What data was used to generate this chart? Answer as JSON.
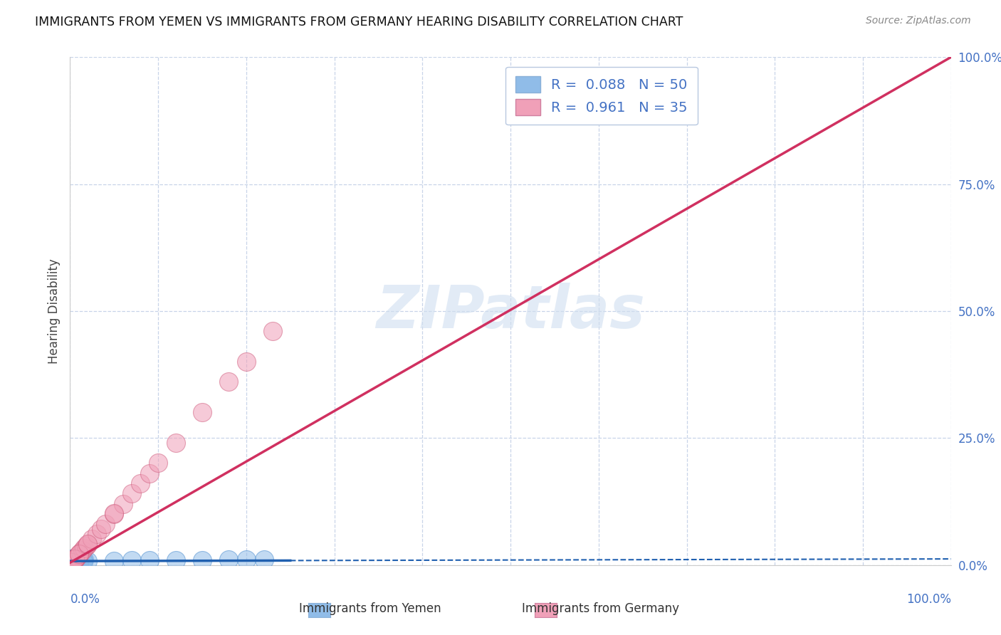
{
  "title": "IMMIGRANTS FROM YEMEN VS IMMIGRANTS FROM GERMANY HEARING DISABILITY CORRELATION CHART",
  "source": "Source: ZipAtlas.com",
  "ylabel": "Hearing Disability",
  "watermark": "ZIPatlas",
  "background_color": "#ffffff",
  "plot_bg_color": "#ffffff",
  "grid_color": "#c8d4e8",
  "yemen_color": "#90bce8",
  "yemen_edge_color": "#5090d0",
  "germany_color": "#f0a0b8",
  "germany_edge_color": "#d06080",
  "yemen_line_color": "#2060b0",
  "germany_line_color": "#d03060",
  "xlim": [
    0,
    1
  ],
  "ylim": [
    0,
    1
  ],
  "yemen_x": [
    0.0002,
    0.0005,
    0.001,
    0.0015,
    0.002,
    0.0025,
    0.003,
    0.004,
    0.005,
    0.006,
    0.007,
    0.008,
    0.009,
    0.01,
    0.011,
    0.012,
    0.013,
    0.014,
    0.015,
    0.016,
    0.0005,
    0.001,
    0.002,
    0.003,
    0.004,
    0.005,
    0.006,
    0.007,
    0.008,
    0.009,
    0.001,
    0.002,
    0.003,
    0.004,
    0.05,
    0.07,
    0.09,
    0.12,
    0.15,
    0.18,
    0.2,
    0.22,
    0.001,
    0.002,
    0.003,
    0.004,
    0.005,
    0.01,
    0.015,
    0.02
  ],
  "yemen_y": [
    0.005,
    0.005,
    0.006,
    0.006,
    0.007,
    0.007,
    0.007,
    0.008,
    0.008,
    0.008,
    0.009,
    0.009,
    0.009,
    0.01,
    0.01,
    0.01,
    0.01,
    0.011,
    0.011,
    0.011,
    0.004,
    0.005,
    0.006,
    0.006,
    0.007,
    0.007,
    0.008,
    0.008,
    0.009,
    0.009,
    0.012,
    0.012,
    0.013,
    0.013,
    0.008,
    0.009,
    0.01,
    0.01,
    0.01,
    0.011,
    0.011,
    0.011,
    0.003,
    0.003,
    0.004,
    0.004,
    0.005,
    0.006,
    0.007,
    0.008
  ],
  "germany_x": [
    0.001,
    0.002,
    0.003,
    0.004,
    0.005,
    0.006,
    0.007,
    0.008,
    0.009,
    0.01,
    0.012,
    0.014,
    0.016,
    0.018,
    0.02,
    0.025,
    0.03,
    0.035,
    0.04,
    0.05,
    0.06,
    0.07,
    0.08,
    0.09,
    0.1,
    0.12,
    0.15,
    0.18,
    0.2,
    0.23,
    0.002,
    0.005,
    0.01,
    0.02,
    0.05
  ],
  "germany_y": [
    0.003,
    0.005,
    0.007,
    0.009,
    0.011,
    0.013,
    0.015,
    0.017,
    0.019,
    0.021,
    0.025,
    0.029,
    0.033,
    0.037,
    0.041,
    0.051,
    0.061,
    0.071,
    0.081,
    0.101,
    0.121,
    0.141,
    0.161,
    0.181,
    0.201,
    0.241,
    0.301,
    0.361,
    0.401,
    0.461,
    0.006,
    0.012,
    0.022,
    0.042,
    0.102
  ]
}
